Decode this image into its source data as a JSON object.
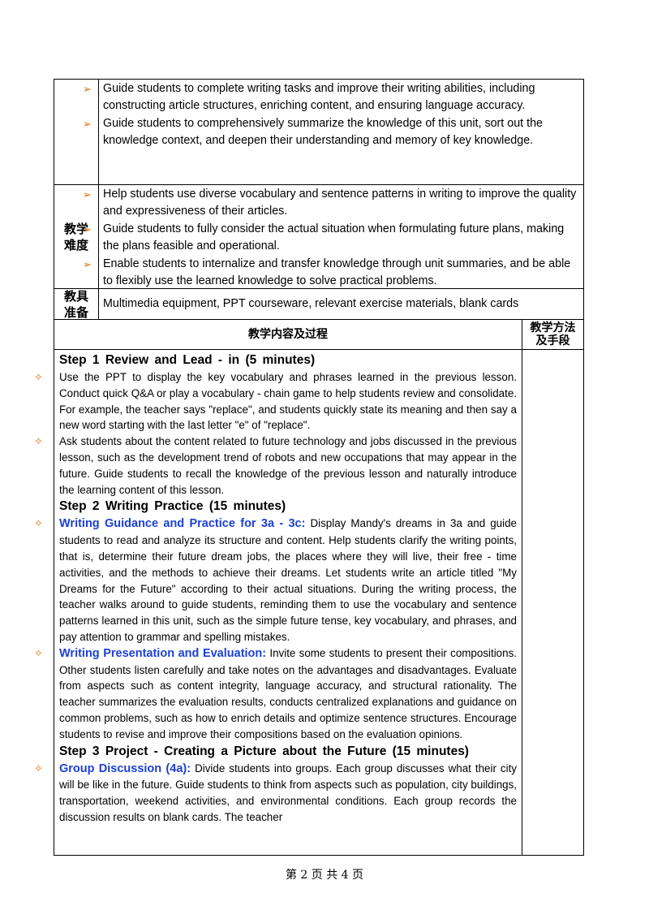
{
  "rows": [
    {
      "items": [
        "Guide students to complete writing tasks and improve their writing abilities, including constructing article structures, enriching content, and ensuring language accuracy.",
        "Guide students to comprehensively summarize the knowledge of this unit, sort out the knowledge context, and deepen their understanding and memory of key knowledge."
      ]
    },
    {
      "label": "教学难度",
      "items": [
        "Help students use diverse vocabulary and sentence patterns in writing to improve the quality and expressiveness of their articles.",
        "Guide students to fully consider the actual situation when formulating future plans, making the plans feasible and operational.",
        "Enable students to internalize and transfer knowledge through unit summaries, and be able to flexibly use the learned knowledge to solve practical problems."
      ]
    },
    {
      "label": "教具准备",
      "text": "Multimedia equipment, PPT courseware, relevant exercise materials, blank cards"
    }
  ],
  "process": {
    "header": "教学内容及过程",
    "method_header": "教学方法及手段",
    "steps": [
      {
        "title": "Step 1 Review and Lead - in (5 minutes)",
        "paragraphs": [
          {
            "text": "Use the PPT to display the key vocabulary and phrases learned in the previous lesson. Conduct quick Q&A or play a vocabulary - chain game to help students review and consolidate. For example, the teacher says \"replace\", and students quickly state its meaning and then say a new word starting with the last letter \"e\" of \"replace\"."
          },
          {
            "text": "Ask students about the content related to future technology and jobs discussed in the previous lesson, such as the development trend of robots and new occupations that may appear in the future. Guide students to recall the knowledge of the previous lesson and naturally introduce the learning content of this lesson."
          }
        ]
      },
      {
        "title": "Step 2 Writing Practice (15 minutes)",
        "paragraphs": [
          {
            "lead": "Writing Guidance and Practice for 3a - 3c:",
            "text": "Display Mandy's dreams in 3a and guide students to read and analyze its structure and content. Help students clarify the writing points, that is, determine their future dream jobs, the places where they will live, their free - time activities, and the methods to achieve their dreams. Let students write an article titled \"My Dreams for the Future\" according to their actual situations. During the writing process, the teacher walks around to guide students, reminding them to use the vocabulary and sentence patterns learned in this unit, such as the simple future tense, key vocabulary, and phrases, and pay attention to grammar and spelling mistakes."
          },
          {
            "lead": "Writing Presentation and Evaluation:",
            "text": "Invite some students to present their compositions. Other students listen carefully and take notes on the advantages and disadvantages. Evaluate from aspects such as content integrity, language accuracy, and structural rationality. The teacher summarizes the evaluation results, conducts centralized explanations and guidance on common problems, such as how to enrich details and optimize sentence structures. Encourage students to revise and improve their compositions based on the evaluation opinions."
          }
        ]
      },
      {
        "title": "Step 3 Project - Creating a Picture about the Future (15 minutes)",
        "paragraphs": [
          {
            "lead": "Group Discussion (4a):",
            "text": "Divide students into groups. Each group discusses what their city will be like in the future. Guide students to think from aspects such as population, city buildings, transportation, weekend activities, and environmental conditions. Each group records the discussion results on blank cards. The teacher"
          }
        ]
      }
    ]
  },
  "footer": "第 2 页 共 4 页"
}
